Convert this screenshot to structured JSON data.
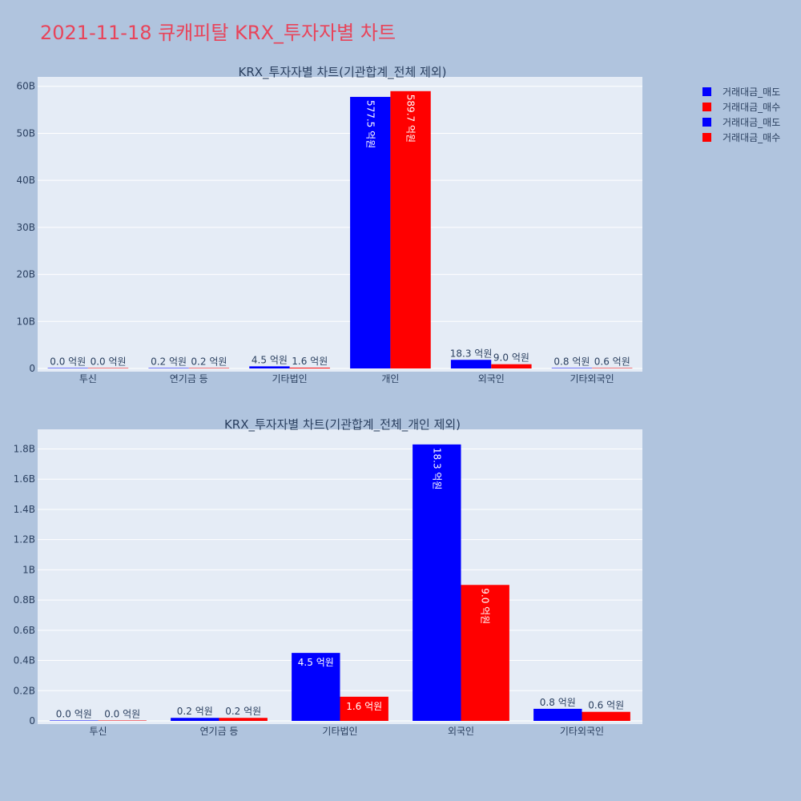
{
  "page": {
    "title": "2021-11-18 큐캐피탈 KRX_투자자별 차트",
    "title_color": "#e8445a",
    "background": "#b0c4de",
    "plot_background": "#e5ecf6"
  },
  "legend": {
    "placement": "top-right",
    "entries": [
      {
        "name": "거래대금_매도",
        "color": "#0000ff"
      },
      {
        "name": "거래대금_매수",
        "color": "#ff0000"
      },
      {
        "name": "거래대금_매도",
        "color": "#0000ff"
      },
      {
        "name": "거래대금_매수",
        "color": "#ff0000"
      }
    ]
  },
  "chart_data": [
    {
      "type": "bar",
      "title": "KRX_투자자별 차트(기관합계_전체 제외)",
      "categories": [
        "투신",
        "연기금 등",
        "기타법인",
        "개인",
        "외국인",
        "기타외국인"
      ],
      "series": [
        {
          "name": "거래대금_매도",
          "color": "#0000ff",
          "values": [
            0.0,
            0.02,
            0.45,
            57.75,
            1.83,
            0.08
          ],
          "labels": [
            "0.0 억원",
            "0.2 억원",
            "4.5 억원",
            "577.5 억원",
            "18.3 억원",
            "0.8 억원"
          ]
        },
        {
          "name": "거래대금_매수",
          "color": "#ff0000",
          "values": [
            0.0,
            0.02,
            0.16,
            58.97,
            0.9,
            0.06
          ],
          "labels": [
            "0.0 억원",
            "0.2 억원",
            "1.6 억원",
            "589.7 억원",
            "9.0 억원",
            "0.6 억원"
          ]
        }
      ],
      "yunit": "B",
      "ylim": [
        0,
        62
      ],
      "yticks": [
        0,
        10,
        20,
        30,
        40,
        50,
        60
      ],
      "ytick_labels": [
        "0",
        "10B",
        "20B",
        "30B",
        "40B",
        "50B",
        "60B"
      ],
      "grid": true
    },
    {
      "type": "bar",
      "title": "KRX_투자자별 차트(기관합계_전체_개인 제외)",
      "categories": [
        "투신",
        "연기금 등",
        "기타법인",
        "외국인",
        "기타외국인"
      ],
      "series": [
        {
          "name": "거래대금_매도",
          "color": "#0000ff",
          "values": [
            0.0,
            0.02,
            0.45,
            1.83,
            0.08
          ],
          "labels": [
            "0.0 억원",
            "0.2 억원",
            "4.5 억원",
            "18.3 억원",
            "0.8 억원"
          ]
        },
        {
          "name": "거래대금_매수",
          "color": "#ff0000",
          "values": [
            0.0,
            0.02,
            0.16,
            0.9,
            0.06
          ],
          "labels": [
            "0.0 억원",
            "0.2 억원",
            "1.6 억원",
            "9.0 억원",
            "0.6 억원"
          ]
        }
      ],
      "yunit": "B",
      "ylim": [
        0,
        1.93
      ],
      "yticks": [
        0,
        0.2,
        0.4,
        0.6,
        0.8,
        1.0,
        1.2,
        1.4,
        1.6,
        1.8
      ],
      "ytick_labels": [
        "0",
        "0.2B",
        "0.4B",
        "0.6B",
        "0.8B",
        "1B",
        "1.2B",
        "1.4B",
        "1.6B",
        "1.8B"
      ],
      "grid": true
    }
  ]
}
